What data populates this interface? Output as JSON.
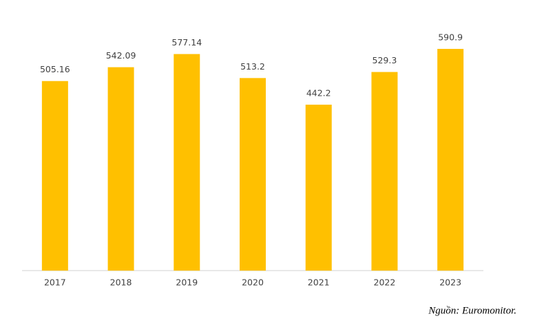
{
  "chart_data": {
    "type": "bar",
    "categories": [
      "2017",
      "2018",
      "2019",
      "2020",
      "2021",
      "2022",
      "2023"
    ],
    "values": [
      505.16,
      542.09,
      577.14,
      513.2,
      442.2,
      529.3,
      590.9
    ],
    "color": "#ffc000",
    "source": "Nguồn: Euromonitor."
  }
}
